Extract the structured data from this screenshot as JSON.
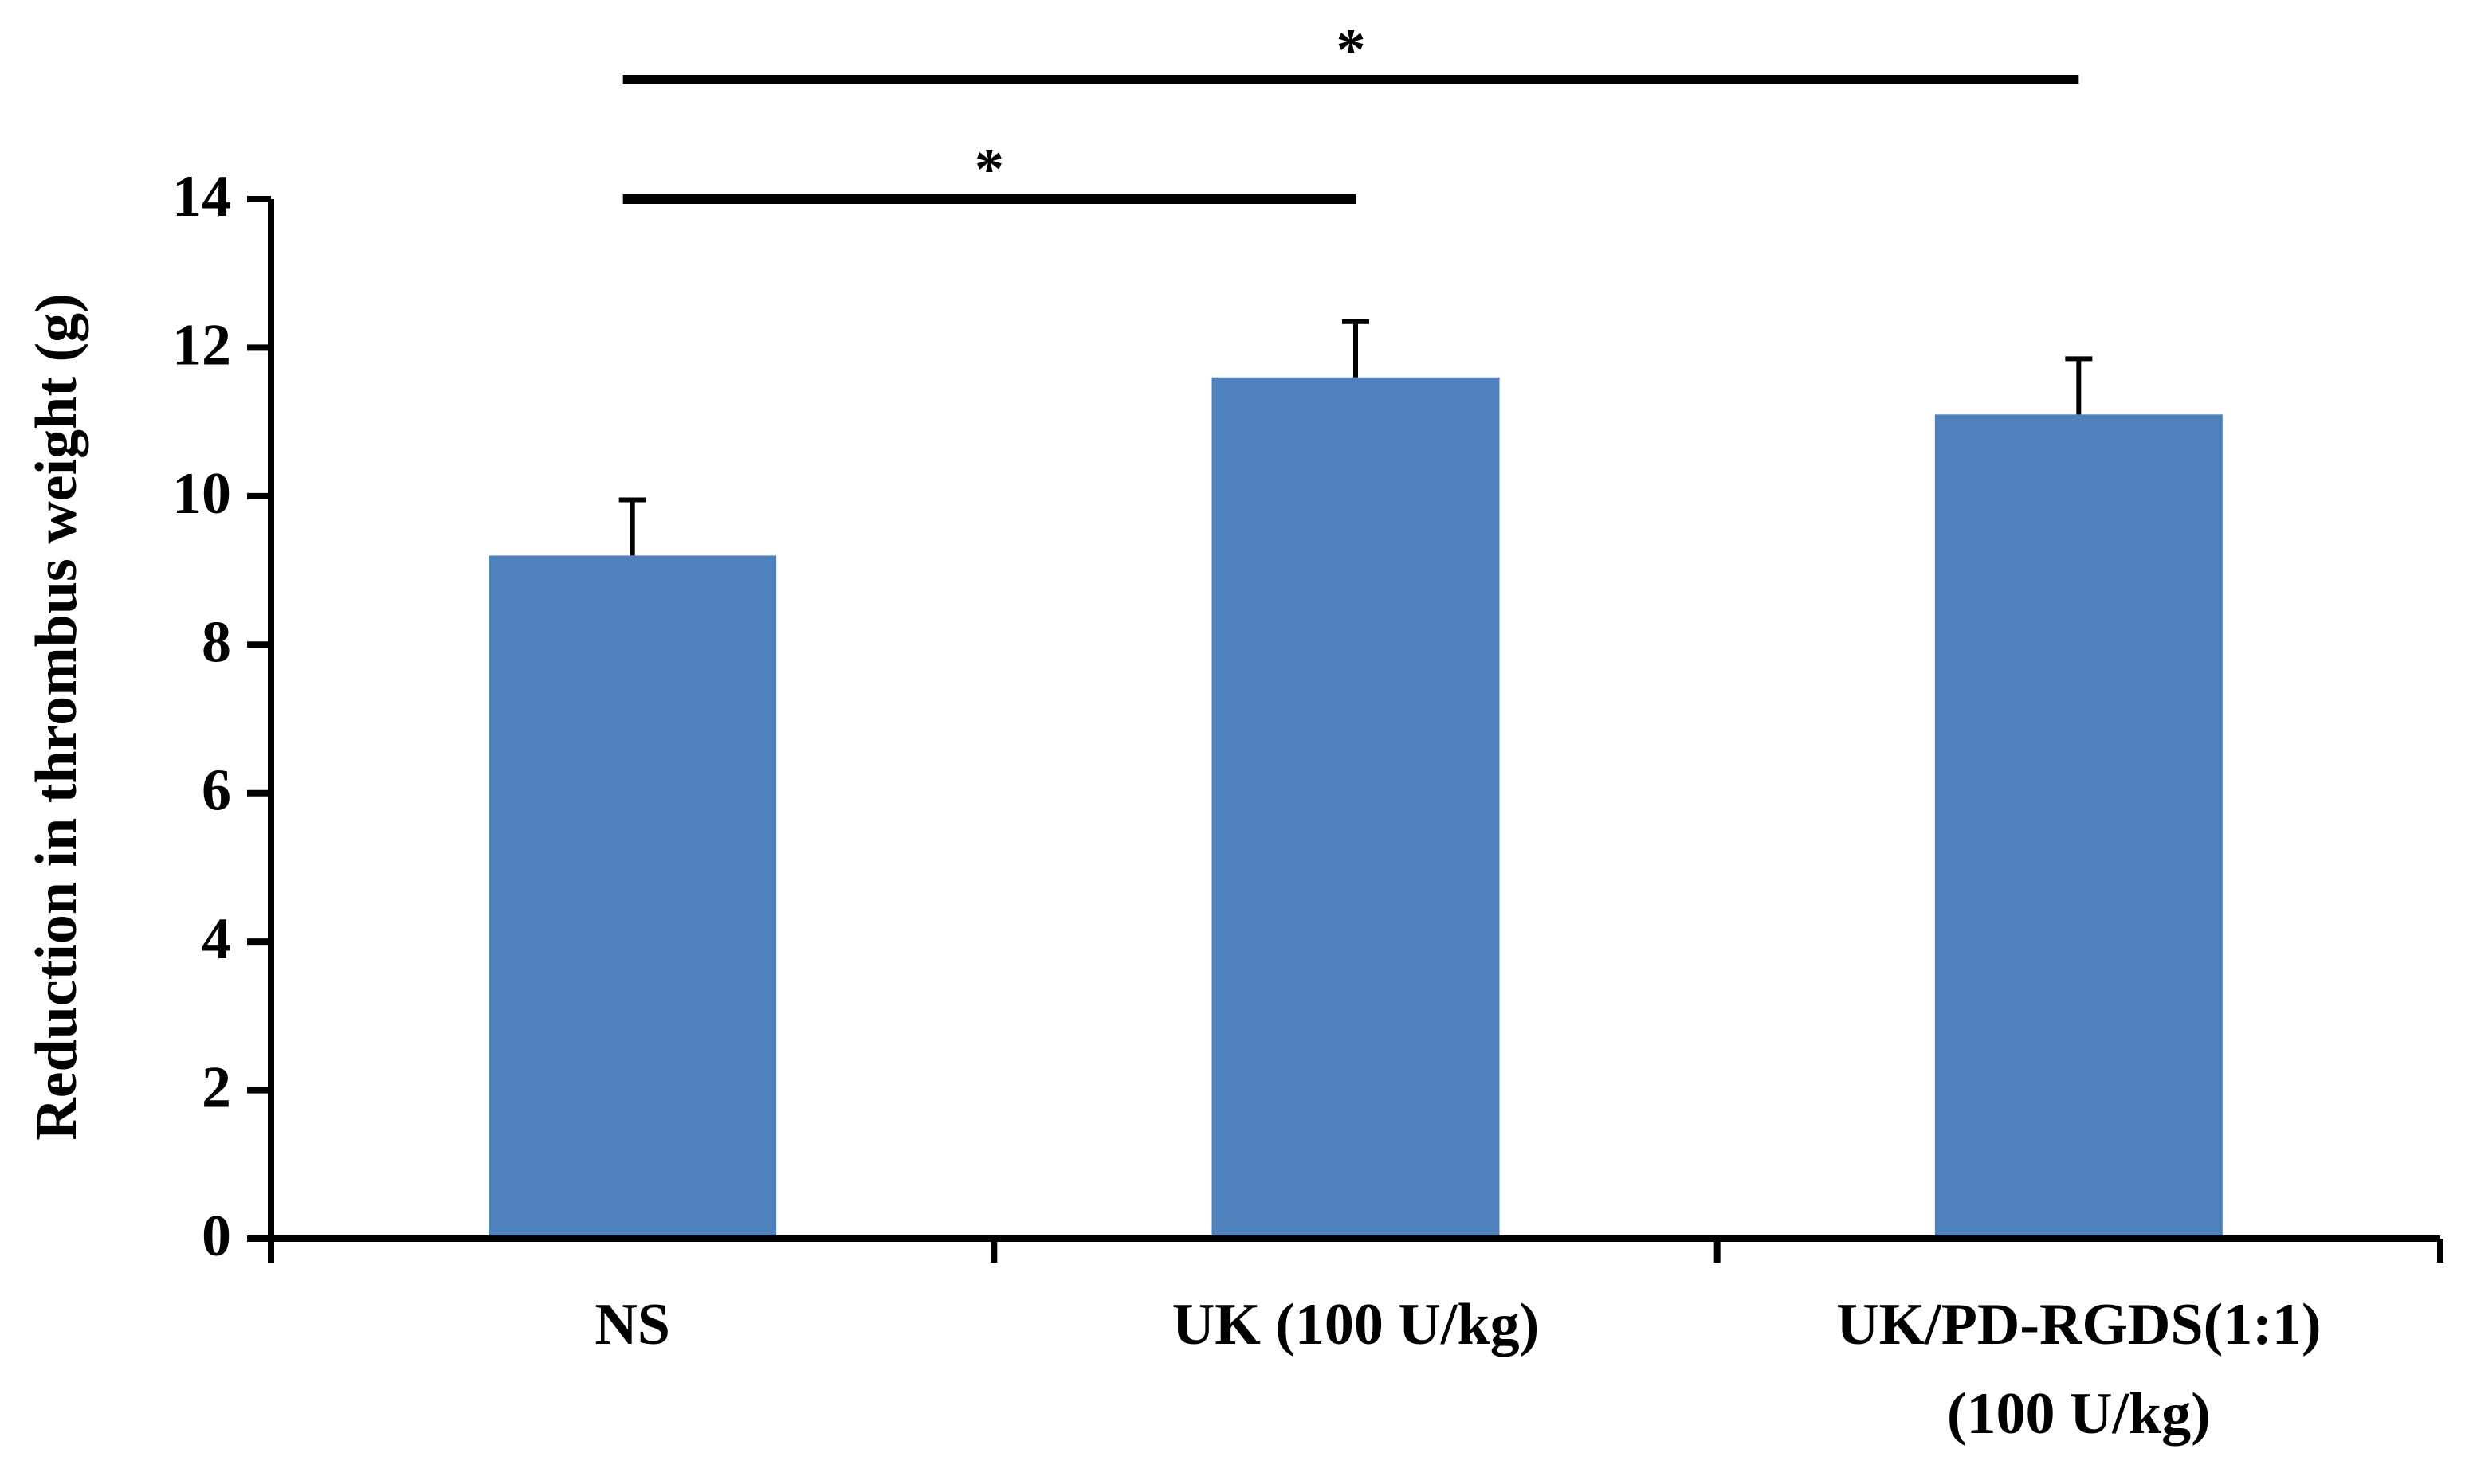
{
  "chart_data": {
    "type": "bar",
    "y_label": "Reduction in thrombus weight (g)",
    "categories": [
      [
        "NS"
      ],
      [
        "UK (100 U/kg)"
      ],
      [
        "UK/PD-RGDS(1:1)",
        "(100 U/kg)"
      ]
    ],
    "values": [
      9.2,
      11.6,
      11.1
    ],
    "errors": [
      0.75,
      0.75,
      0.75
    ],
    "color": "#4f81bd",
    "ylim": [
      0,
      14
    ],
    "yticks": [
      0,
      2,
      4,
      6,
      8,
      10,
      12,
      14
    ],
    "significance": [
      {
        "text": "*",
        "from": 0,
        "to": 1
      },
      {
        "text": "*",
        "from": 0,
        "to": 2
      }
    ]
  }
}
